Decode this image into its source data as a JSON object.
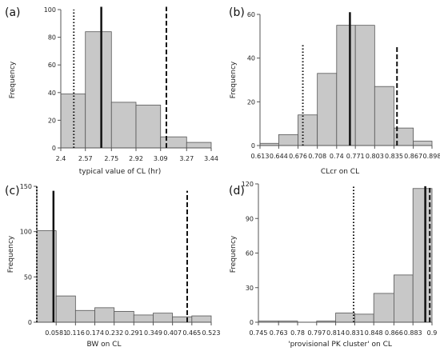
{
  "chart_data": [
    {
      "panel_label": "(a)",
      "type": "bar",
      "xlabel": "typical value of CL (hr)",
      "ylabel": "Frequency",
      "x_ticks": [
        "2.4",
        "2.57",
        "2.75",
        "2.92",
        "3.09",
        "3.27",
        "3.44"
      ],
      "y_ticks": [
        "0",
        "20",
        "40",
        "60",
        "80",
        "100"
      ],
      "ylim": [
        0,
        100
      ],
      "bins": [
        {
          "from": 2.4,
          "to": 2.57,
          "value": 39
        },
        {
          "from": 2.57,
          "to": 2.75,
          "value": 84
        },
        {
          "from": 2.75,
          "to": 2.92,
          "value": 33
        },
        {
          "from": 2.92,
          "to": 3.09,
          "value": 31
        },
        {
          "from": 3.09,
          "to": 3.27,
          "value": 8
        },
        {
          "from": 3.27,
          "to": 3.44,
          "value": 4
        }
      ],
      "reference_lines": [
        {
          "style": "dotted",
          "x": 2.49,
          "top": 100
        },
        {
          "style": "solid",
          "x": 2.68,
          "top": 102
        },
        {
          "style": "dashed",
          "x": 3.13,
          "top": 102
        }
      ]
    },
    {
      "panel_label": "(b)",
      "type": "bar",
      "xlabel": "CLcr on CL",
      "ylabel": "Frequency",
      "x_ticks": [
        "0.613",
        "0.644",
        "0.676",
        "0.708",
        "0.74",
        "0.771",
        "0.803",
        "0.835",
        "0.867",
        "0.898"
      ],
      "y_ticks": [
        "0",
        "20",
        "40",
        "60"
      ],
      "ylim": [
        0,
        60
      ],
      "bins": [
        {
          "from": 0.613,
          "to": 0.644,
          "value": 1
        },
        {
          "from": 0.644,
          "to": 0.676,
          "value": 5
        },
        {
          "from": 0.676,
          "to": 0.708,
          "value": 14
        },
        {
          "from": 0.708,
          "to": 0.74,
          "value": 33
        },
        {
          "from": 0.74,
          "to": 0.771,
          "value": 55
        },
        {
          "from": 0.771,
          "to": 0.803,
          "value": 55
        },
        {
          "from": 0.803,
          "to": 0.835,
          "value": 27
        },
        {
          "from": 0.835,
          "to": 0.867,
          "value": 8
        },
        {
          "from": 0.867,
          "to": 0.898,
          "value": 2
        }
      ],
      "reference_lines": [
        {
          "style": "dotted",
          "x": 0.684,
          "top": 46
        },
        {
          "style": "solid",
          "x": 0.762,
          "top": 61
        },
        {
          "style": "dashed",
          "x": 0.84,
          "top": 46
        }
      ]
    },
    {
      "panel_label": "(c)",
      "type": "bar",
      "xlabel": "BW on CL",
      "ylabel": "Frequency",
      "x_ticks": [
        "0.0581",
        "0.116",
        "0.174",
        "0.232",
        "0.291",
        "0.349",
        "0.407",
        "0.465",
        "0.523"
      ],
      "y_ticks": [
        "0",
        "50",
        "100",
        "150"
      ],
      "ylim": [
        0,
        150
      ],
      "bins": [
        {
          "from": 0.0,
          "to": 0.0581,
          "value": 101
        },
        {
          "from": 0.0581,
          "to": 0.116,
          "value": 29
        },
        {
          "from": 0.116,
          "to": 0.174,
          "value": 13
        },
        {
          "from": 0.174,
          "to": 0.232,
          "value": 16
        },
        {
          "from": 0.232,
          "to": 0.291,
          "value": 12
        },
        {
          "from": 0.291,
          "to": 0.349,
          "value": 8
        },
        {
          "from": 0.349,
          "to": 0.407,
          "value": 10
        },
        {
          "from": 0.407,
          "to": 0.465,
          "value": 6
        },
        {
          "from": 0.465,
          "to": 0.523,
          "value": 7
        }
      ],
      "reference_lines": [
        {
          "style": "dotted",
          "x": 0.0,
          "top": 150
        },
        {
          "style": "solid",
          "x": 0.05,
          "top": 145
        },
        {
          "style": "dashed",
          "x": 0.451,
          "top": 145
        }
      ]
    },
    {
      "panel_label": "(d)",
      "type": "bar",
      "xlabel": "'provisional PK cluster' on CL",
      "ylabel": "Frequency",
      "x_ticks": [
        "0.745",
        "0.763",
        "0.78",
        "0.797",
        "0.814",
        "0.831",
        "0.848",
        "0.866",
        "0.883",
        "0.9"
      ],
      "y_ticks": [
        "0",
        "30",
        "60",
        "90",
        "120"
      ],
      "ylim": [
        0,
        120
      ],
      "bins": [
        {
          "from": 0.745,
          "to": 0.763,
          "value": 1
        },
        {
          "from": 0.763,
          "to": 0.78,
          "value": 1
        },
        {
          "from": 0.78,
          "to": 0.797,
          "value": 0
        },
        {
          "from": 0.797,
          "to": 0.814,
          "value": 1
        },
        {
          "from": 0.814,
          "to": 0.831,
          "value": 8
        },
        {
          "from": 0.831,
          "to": 0.848,
          "value": 7
        },
        {
          "from": 0.848,
          "to": 0.866,
          "value": 25
        },
        {
          "from": 0.866,
          "to": 0.883,
          "value": 41
        },
        {
          "from": 0.883,
          "to": 0.9,
          "value": 116
        }
      ],
      "reference_lines": [
        {
          "style": "dotted",
          "x": 0.83,
          "top": 118
        },
        {
          "style": "solid",
          "x": 0.894,
          "top": 118
        },
        {
          "style": "dashed",
          "x": 0.898,
          "top": 118
        }
      ]
    }
  ]
}
